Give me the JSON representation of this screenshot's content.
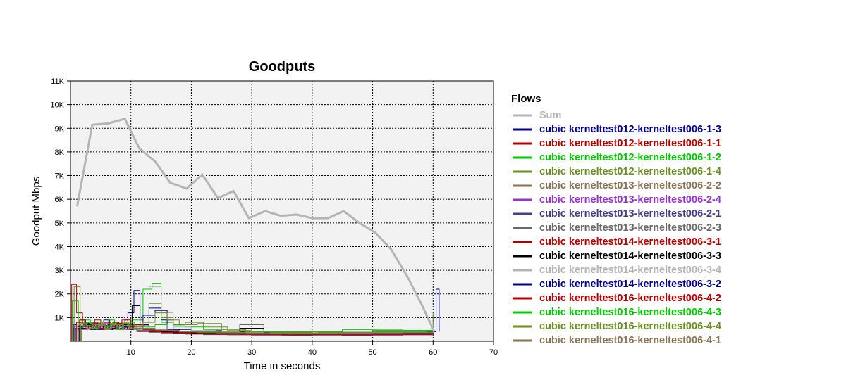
{
  "chart_data": {
    "type": "line",
    "title": "Goodputs",
    "xlabel": "Time in seconds",
    "ylabel": "Goodput Mbps",
    "xlim": [
      0,
      70
    ],
    "ylim": [
      0,
      11000
    ],
    "x_ticks": [
      10,
      20,
      30,
      40,
      50,
      60,
      70
    ],
    "y_ticks": [
      1000,
      2000,
      3000,
      4000,
      5000,
      6000,
      7000,
      8000,
      9000,
      10000,
      11000
    ],
    "y_tick_labels": [
      "1K",
      "2K",
      "3K",
      "4K",
      "5K",
      "6K",
      "7K",
      "8K",
      "9K",
      "10K",
      "11K"
    ],
    "grid": true,
    "legend_title": "Flows",
    "legend_position": "right",
    "series": [
      {
        "name": "Sum",
        "color": "#b4b4b4",
        "width": 3,
        "x": [
          1.1,
          3.6,
          6.2,
          9.0,
          11.4,
          14.0,
          16.5,
          19.2,
          21.8,
          24.4,
          27.0,
          29.5,
          32.2,
          34.8,
          37.4,
          40.0,
          42.6,
          45.2,
          47.8,
          50.4,
          53.0,
          55.6,
          58.2,
          60.2
        ],
        "y": [
          5700,
          9150,
          9200,
          9400,
          8150,
          7600,
          6700,
          6450,
          7050,
          6050,
          6350,
          5200,
          5500,
          5300,
          5350,
          5200,
          5200,
          5500,
          5000,
          4600,
          3900,
          2800,
          1500,
          400
        ]
      },
      {
        "name": "cubic kerneltest012-kerneltest006-1-3",
        "color": "#00008b",
        "x": [
          0.5,
          1.5,
          2.5,
          3.5,
          4.5,
          5.5,
          6.5,
          7.5,
          8.5,
          9.5,
          10.5,
          11.5,
          13,
          15,
          17,
          20,
          25,
          30,
          35,
          40,
          45,
          50,
          55,
          59,
          60.5,
          61
        ],
        "y": [
          700,
          900,
          650,
          800,
          600,
          900,
          550,
          750,
          650,
          1200,
          2150,
          650,
          1400,
          900,
          500,
          450,
          400,
          380,
          350,
          400,
          380,
          400,
          420,
          400,
          2200,
          400
        ]
      },
      {
        "name": "cubic kerneltest012-kerneltest006-1-1",
        "color": "#b40000",
        "x": [
          0.2,
          1.0,
          2.0,
          3.0,
          4.0,
          5.0,
          6.0,
          7.0,
          8.0,
          9.0,
          10.0,
          12,
          14,
          16,
          18,
          20,
          25,
          30,
          35,
          40,
          45,
          50,
          55,
          60
        ],
        "y": [
          2400,
          1200,
          800,
          600,
          900,
          700,
          600,
          800,
          700,
          900,
          600,
          500,
          450,
          400,
          380,
          350,
          330,
          320,
          300,
          320,
          300,
          310,
          320,
          300
        ]
      },
      {
        "name": "cubic kerneltest012-kerneltest006-1-2",
        "color": "#00c800",
        "x": [
          0.3,
          1.3,
          2.3,
          3.3,
          4.3,
          5.3,
          6.3,
          7.3,
          8.3,
          9.3,
          10.3,
          12,
          13.5,
          15,
          17,
          19,
          22,
          26,
          30,
          35,
          40,
          45,
          50,
          55,
          60
        ],
        "y": [
          1700,
          700,
          900,
          650,
          800,
          700,
          900,
          600,
          800,
          700,
          900,
          2200,
          2450,
          800,
          650,
          600,
          500,
          450,
          420,
          400,
          420,
          500,
          450,
          420,
          400
        ]
      },
      {
        "name": "cubic kerneltest012-kerneltest006-1-4",
        "color": "#6b8e23",
        "x": [
          0.6,
          1.6,
          2.6,
          3.6,
          4.6,
          5.6,
          6.6,
          7.6,
          8.6,
          9.6,
          11,
          13,
          15,
          17,
          19,
          22,
          26,
          30,
          35,
          40,
          45,
          50,
          55,
          60
        ],
        "y": [
          2300,
          800,
          600,
          750,
          650,
          800,
          700,
          600,
          750,
          650,
          700,
          1600,
          1000,
          700,
          800,
          600,
          450,
          400,
          380,
          400,
          380,
          400,
          380,
          1200
        ]
      },
      {
        "name": "cubic kerneltest013-kerneltest006-2-2",
        "color": "#8b7355",
        "x": [
          0.4,
          1.4,
          2.4,
          3.4,
          4.4,
          5.4,
          6.4,
          7.4,
          8.4,
          9.4,
          11,
          13,
          15,
          17,
          19,
          22,
          26,
          30,
          35,
          40,
          45,
          50,
          55,
          60
        ],
        "y": [
          600,
          700,
          550,
          650,
          700,
          550,
          650,
          700,
          550,
          600,
          500,
          450,
          400,
          380,
          350,
          330,
          320,
          300,
          280,
          300,
          290,
          300,
          310,
          300
        ]
      },
      {
        "name": "cubic kerneltest013-kerneltest006-2-4",
        "color": "#9932cc",
        "x": [
          0.7,
          1.7,
          2.7,
          3.7,
          4.7,
          5.7,
          6.7,
          7.7,
          8.7,
          9.7,
          11,
          13,
          15,
          17,
          19,
          22,
          26,
          30,
          35,
          40,
          45,
          50,
          55,
          60
        ],
        "y": [
          650,
          500,
          700,
          550,
          600,
          750,
          500,
          650,
          550,
          700,
          450,
          400,
          380,
          350,
          320,
          300,
          290,
          280,
          270,
          280,
          270,
          280,
          290,
          280
        ]
      },
      {
        "name": "cubic kerneltest013-kerneltest006-2-1",
        "color": "#483d8b",
        "x": [
          0.8,
          1.8,
          2.8,
          3.8,
          4.8,
          5.8,
          6.8,
          7.8,
          8.8,
          9.8,
          11,
          13,
          15,
          17,
          19,
          22,
          26,
          30,
          35,
          40,
          45,
          50,
          55,
          60
        ],
        "y": [
          550,
          650,
          500,
          700,
          550,
          650,
          600,
          500,
          650,
          550,
          420,
          380,
          350,
          330,
          300,
          280,
          270,
          260,
          250,
          260,
          250,
          260,
          270,
          260
        ]
      },
      {
        "name": "cubic kerneltest013-kerneltest006-2-3",
        "color": "#696969",
        "x": [
          0.9,
          1.9,
          2.9,
          3.9,
          4.9,
          5.9,
          6.9,
          7.9,
          8.9,
          9.9,
          11,
          13,
          15,
          17,
          20,
          24,
          28,
          32,
          36,
          40,
          45,
          50,
          55,
          60
        ],
        "y": [
          500,
          600,
          700,
          500,
          650,
          550,
          700,
          550,
          600,
          500,
          400,
          380,
          360,
          330,
          310,
          300,
          700,
          300,
          280,
          300,
          280,
          290,
          300,
          290
        ]
      },
      {
        "name": "cubic kerneltest014-kerneltest006-3-1",
        "color": "#b40000",
        "x": [
          1.0,
          2.0,
          3.0,
          4.0,
          5.0,
          6.0,
          7.0,
          8.0,
          9.0,
          10.0,
          11,
          13,
          15,
          17,
          20,
          24,
          28,
          32,
          36,
          40,
          45,
          50,
          55,
          60
        ],
        "y": [
          800,
          550,
          650,
          750,
          500,
          650,
          800,
          550,
          700,
          600,
          450,
          400,
          370,
          340,
          320,
          300,
          290,
          280,
          270,
          280,
          270,
          280,
          290,
          280
        ]
      },
      {
        "name": "cubic kerneltest014-kerneltest006-3-3",
        "color": "#000000",
        "x": [
          1.2,
          2.2,
          3.2,
          4.2,
          5.2,
          6.2,
          7.2,
          8.2,
          9.2,
          10.2,
          11.5,
          13,
          15,
          17,
          20,
          24,
          28,
          32,
          36,
          40,
          45,
          50,
          55,
          60
        ],
        "y": [
          600,
          750,
          500,
          650,
          700,
          500,
          650,
          700,
          500,
          1500,
          700,
          450,
          400,
          380,
          350,
          400,
          550,
          350,
          330,
          350,
          330,
          340,
          350,
          340
        ]
      },
      {
        "name": "cubic kerneltest014-kerneltest006-3-4",
        "color": "#b4b4b4",
        "x": [
          1.1,
          2.1,
          3.1,
          4.1,
          5.1,
          6.1,
          7.1,
          8.1,
          9.1,
          10.1,
          11.5,
          13,
          15,
          17,
          20,
          24,
          28,
          32,
          36,
          40,
          45,
          50,
          55,
          60
        ],
        "y": [
          700,
          500,
          600,
          550,
          700,
          600,
          500,
          650,
          550,
          600,
          500,
          2300,
          1200,
          600,
          450,
          400,
          380,
          350,
          340,
          350,
          340,
          350,
          360,
          350
        ]
      },
      {
        "name": "cubic kerneltest014-kerneltest006-3-2",
        "color": "#00008b",
        "x": [
          1.4,
          2.4,
          3.4,
          4.4,
          5.4,
          6.4,
          7.4,
          8.4,
          9.4,
          10.4,
          12,
          14,
          16,
          18,
          21,
          25,
          29,
          33,
          37,
          41,
          45,
          50,
          55,
          60
        ],
        "y": [
          550,
          700,
          600,
          500,
          650,
          550,
          700,
          600,
          500,
          650,
          1100,
          1300,
          500,
          420,
          400,
          380,
          350,
          330,
          320,
          330,
          320,
          330,
          340,
          330
        ]
      },
      {
        "name": "cubic kerneltest016-kerneltest006-4-2",
        "color": "#b40000",
        "x": [
          1.5,
          2.5,
          3.5,
          4.5,
          5.5,
          6.5,
          7.5,
          8.5,
          9.5,
          10.5,
          12,
          14,
          16,
          18,
          21,
          25,
          29,
          33,
          37,
          41,
          45,
          50,
          55,
          60
        ],
        "y": [
          900,
          600,
          750,
          550,
          800,
          600,
          750,
          900,
          600,
          700,
          500,
          450,
          420,
          380,
          360,
          340,
          320,
          310,
          300,
          310,
          300,
          310,
          320,
          310
        ]
      },
      {
        "name": "cubic kerneltest016-kerneltest006-4-3",
        "color": "#00c800",
        "x": [
          1.6,
          2.6,
          3.6,
          4.6,
          5.6,
          6.6,
          7.6,
          8.6,
          9.6,
          10.6,
          12,
          14,
          16,
          18,
          21,
          25,
          29,
          33,
          37,
          41,
          45,
          50,
          55,
          60
        ],
        "y": [
          650,
          800,
          550,
          700,
          600,
          750,
          500,
          650,
          800,
          550,
          600,
          700,
          450,
          400,
          380,
          360,
          350,
          340,
          330,
          340,
          500,
          480,
          460,
          450
        ]
      },
      {
        "name": "cubic kerneltest016-kerneltest006-4-4",
        "color": "#6b8e23",
        "x": [
          1.7,
          2.7,
          3.7,
          4.7,
          5.7,
          6.7,
          7.7,
          8.7,
          9.7,
          10.7,
          12,
          14,
          16,
          18,
          21,
          25,
          29,
          33,
          37,
          41,
          45,
          50,
          55,
          60
        ],
        "y": [
          750,
          550,
          700,
          650,
          500,
          700,
          600,
          750,
          550,
          650,
          800,
          1200,
          900,
          700,
          750,
          500,
          400,
          380,
          360,
          380,
          360,
          370,
          380,
          370
        ]
      },
      {
        "name": "cubic kerneltest016-kerneltest006-4-1",
        "color": "#8b7355",
        "x": [
          1.8,
          2.8,
          3.8,
          4.8,
          5.8,
          6.8,
          7.8,
          8.8,
          9.8,
          10.8,
          12,
          14,
          16,
          18,
          21,
          25,
          29,
          33,
          37,
          41,
          45,
          50,
          55,
          60
        ],
        "y": [
          500,
          650,
          600,
          700,
          550,
          650,
          700,
          500,
          650,
          600,
          550,
          500,
          460,
          420,
          400,
          380,
          360,
          350,
          340,
          350,
          340,
          350,
          360,
          350
        ]
      }
    ]
  }
}
